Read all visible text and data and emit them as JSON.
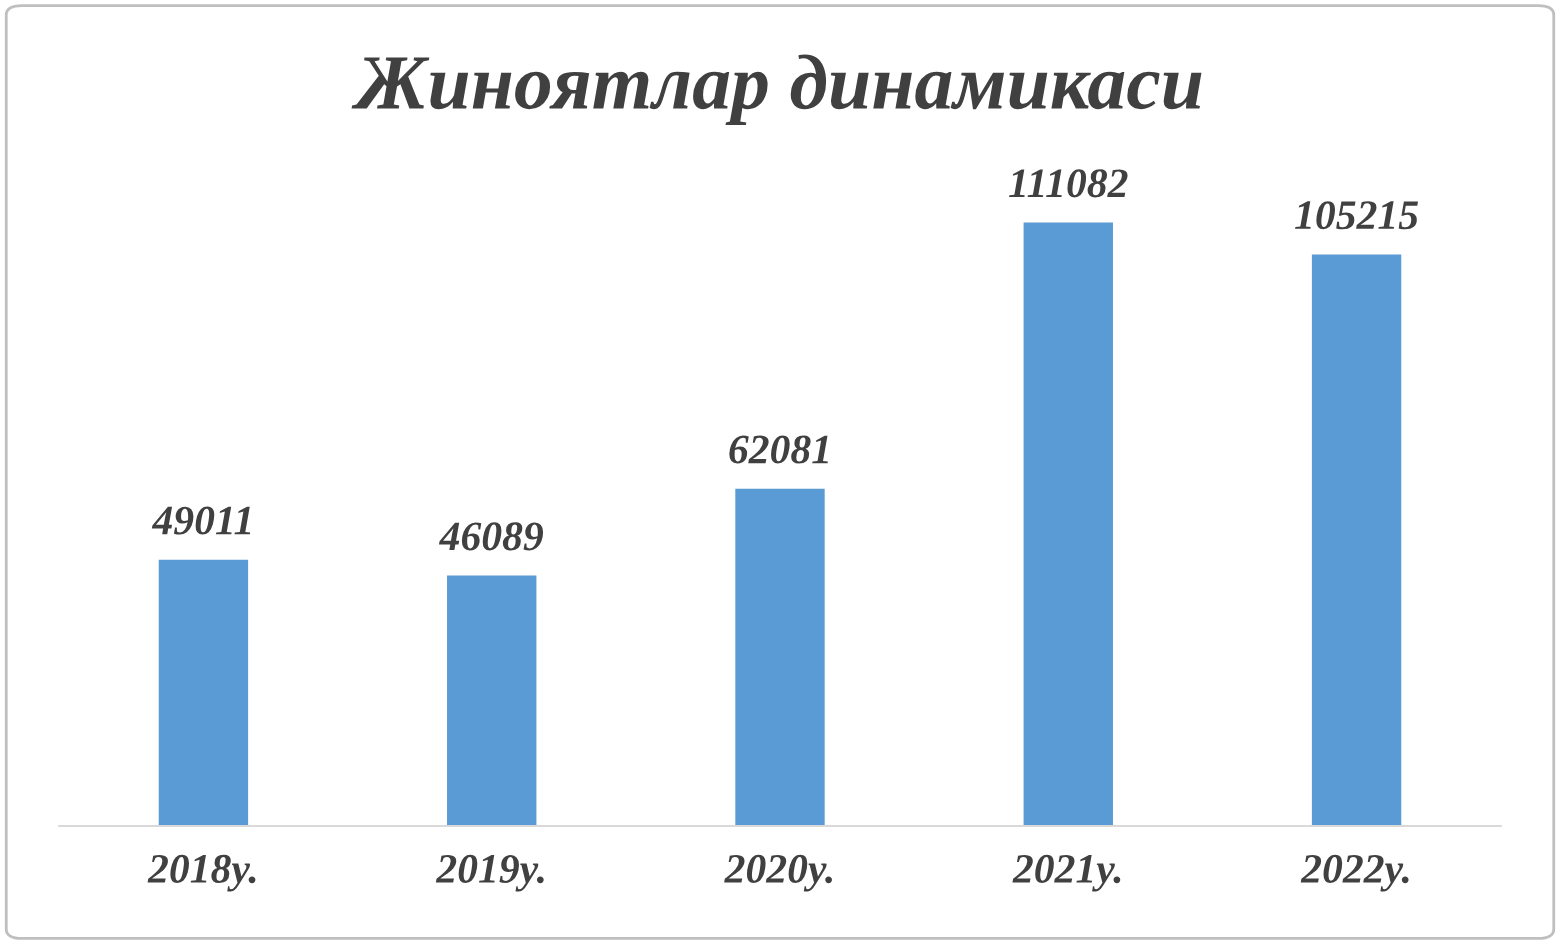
{
  "chart_data": {
    "type": "bar",
    "title": "Жиноятлар динамикаси",
    "categories": [
      "2018y.",
      "2019y.",
      "2020y.",
      "2021y.",
      "2022y."
    ],
    "values": [
      49011,
      46089,
      62081,
      111082,
      105215
    ],
    "color": "#5b9bd5",
    "data_labels": true,
    "grid": false,
    "legend": false
  }
}
